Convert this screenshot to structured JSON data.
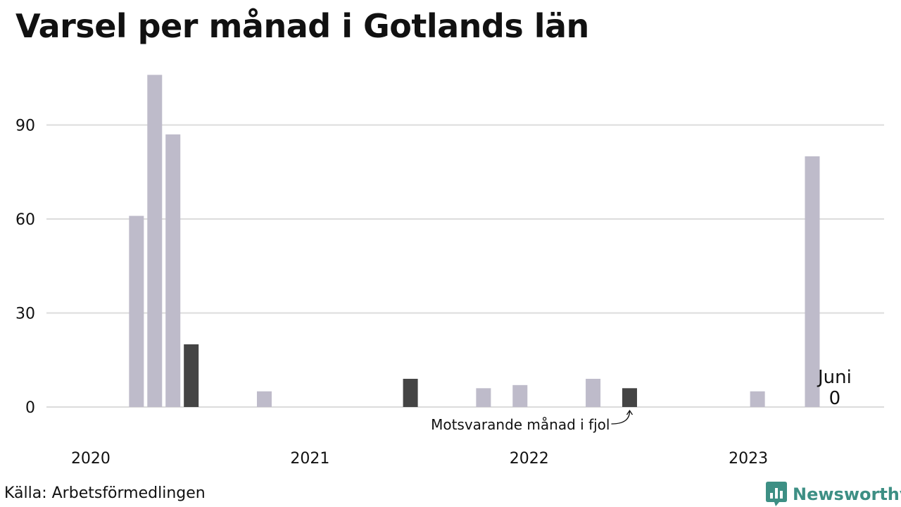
{
  "title": "Varsel per månad i Gotlands län",
  "source": "Källa: Arbetsförmedlingen",
  "brand": {
    "name": "Newsworthy",
    "icon": "newsworthy-logo-icon",
    "color": "#3d8f84"
  },
  "colors": {
    "bar": "#bebbca",
    "highlight": "#444444",
    "grid": "#dcdcdc",
    "text": "#111111"
  },
  "annotation": {
    "text": "Motsvarande månad i fjol"
  },
  "callout": {
    "label": "Juni",
    "value": "0"
  },
  "chart_data": {
    "type": "bar",
    "x_unit": "month",
    "x_range": [
      "2020-01",
      "2023-06"
    ],
    "x_ticks": [
      "2020",
      "2021",
      "2022",
      "2023"
    ],
    "y_ticks": [
      0,
      30,
      60,
      90
    ],
    "ylim": [
      0,
      107
    ],
    "grid": true,
    "data": [
      {
        "month": "2020-01",
        "value": 0
      },
      {
        "month": "2020-02",
        "value": 0
      },
      {
        "month": "2020-03",
        "value": 0
      },
      {
        "month": "2020-04",
        "value": 61
      },
      {
        "month": "2020-05",
        "value": 106
      },
      {
        "month": "2020-06",
        "value": 87
      },
      {
        "month": "2020-07",
        "value": 20,
        "highlight": true
      },
      {
        "month": "2020-08",
        "value": 0
      },
      {
        "month": "2020-09",
        "value": 0
      },
      {
        "month": "2020-10",
        "value": 0
      },
      {
        "month": "2020-11",
        "value": 5
      },
      {
        "month": "2020-12",
        "value": 0
      },
      {
        "month": "2021-01",
        "value": 0
      },
      {
        "month": "2021-02",
        "value": 0
      },
      {
        "month": "2021-03",
        "value": 0
      },
      {
        "month": "2021-04",
        "value": 0
      },
      {
        "month": "2021-05",
        "value": 0
      },
      {
        "month": "2021-06",
        "value": 0
      },
      {
        "month": "2021-07",
        "value": 9,
        "highlight": true
      },
      {
        "month": "2021-08",
        "value": 0
      },
      {
        "month": "2021-09",
        "value": 0
      },
      {
        "month": "2021-10",
        "value": 0
      },
      {
        "month": "2021-11",
        "value": 6
      },
      {
        "month": "2021-12",
        "value": 0
      },
      {
        "month": "2022-01",
        "value": 7
      },
      {
        "month": "2022-02",
        "value": 0
      },
      {
        "month": "2022-03",
        "value": 0
      },
      {
        "month": "2022-04",
        "value": 0
      },
      {
        "month": "2022-05",
        "value": 9
      },
      {
        "month": "2022-06",
        "value": 0
      },
      {
        "month": "2022-07",
        "value": 6,
        "highlight": true
      },
      {
        "month": "2022-08",
        "value": 0
      },
      {
        "month": "2022-09",
        "value": 0
      },
      {
        "month": "2022-10",
        "value": 0
      },
      {
        "month": "2022-11",
        "value": 0
      },
      {
        "month": "2022-12",
        "value": 0
      },
      {
        "month": "2023-01",
        "value": 0
      },
      {
        "month": "2023-02",
        "value": 5
      },
      {
        "month": "2023-03",
        "value": 0
      },
      {
        "month": "2023-04",
        "value": 0
      },
      {
        "month": "2023-05",
        "value": 80
      },
      {
        "month": "2023-06",
        "value": 0
      }
    ]
  }
}
